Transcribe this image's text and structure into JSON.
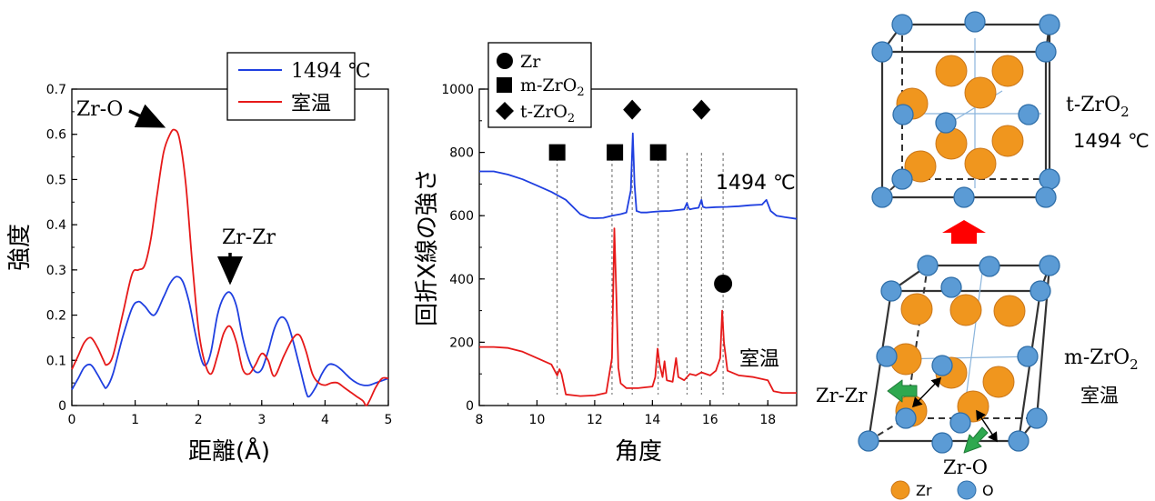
{
  "colors": {
    "hot": "#1f3fe0",
    "room": "#e61919",
    "zr_atom": "#f0961e",
    "o_atom": "#5b9bd5",
    "green_arrow": "#2ea84f",
    "red_arrow": "#ff0000",
    "ref_line": "#666666"
  },
  "chart_data": [
    {
      "type": "line",
      "xlabel": "距離(Å)",
      "ylabel": "強度",
      "xlim": [
        0,
        5
      ],
      "ylim": [
        0,
        0.7
      ],
      "xticks": [
        "0",
        "1",
        "2",
        "3",
        "4",
        "5"
      ],
      "yticks": [
        "0",
        "0.1",
        "0.2",
        "0.3",
        "0.4",
        "0.5",
        "0.6",
        "0.7"
      ],
      "legend": {
        "position": "top-right",
        "entries": [
          "1494 ℃",
          "室温"
        ]
      },
      "series": [
        {
          "name": "1494 ℃",
          "color": "hot",
          "x": [
            0,
            0.1,
            0.2,
            0.3,
            0.4,
            0.5,
            0.55,
            0.65,
            0.8,
            0.95,
            1.05,
            1.15,
            1.3,
            1.45,
            1.55,
            1.65,
            1.75,
            1.85,
            1.95,
            2.05,
            2.12,
            2.2,
            2.3,
            2.4,
            2.5,
            2.6,
            2.7,
            2.8,
            2.9,
            3.0,
            3.1,
            3.2,
            3.3,
            3.4,
            3.5,
            3.6,
            3.7,
            3.75,
            3.85,
            3.95,
            4.05,
            4.15,
            4.25,
            4.4,
            4.5,
            4.6,
            4.7,
            4.8,
            4.9,
            5.0
          ],
          "y": [
            0.035,
            0.06,
            0.085,
            0.09,
            0.07,
            0.045,
            0.04,
            0.07,
            0.15,
            0.215,
            0.23,
            0.22,
            0.2,
            0.24,
            0.27,
            0.285,
            0.275,
            0.23,
            0.16,
            0.1,
            0.09,
            0.12,
            0.2,
            0.24,
            0.25,
            0.22,
            0.15,
            0.1,
            0.075,
            0.08,
            0.12,
            0.17,
            0.195,
            0.185,
            0.14,
            0.085,
            0.03,
            0.02,
            0.04,
            0.07,
            0.09,
            0.09,
            0.08,
            0.06,
            0.05,
            0.045,
            0.045,
            0.05,
            0.055,
            0.06
          ]
        },
        {
          "name": "室温",
          "color": "room",
          "x": [
            0,
            0.1,
            0.2,
            0.3,
            0.4,
            0.5,
            0.55,
            0.65,
            0.8,
            0.95,
            1.05,
            1.15,
            1.25,
            1.35,
            1.45,
            1.55,
            1.62,
            1.7,
            1.8,
            1.9,
            2.0,
            2.1,
            2.2,
            2.3,
            2.4,
            2.5,
            2.6,
            2.7,
            2.8,
            2.9,
            3.0,
            3.1,
            3.2,
            3.35,
            3.5,
            3.6,
            3.7,
            3.8,
            3.9,
            4.0,
            4.1,
            4.2,
            4.3,
            4.4,
            4.5,
            4.6,
            4.65,
            4.7,
            4.8,
            4.9,
            5.0
          ],
          "y": [
            0.08,
            0.11,
            0.14,
            0.15,
            0.13,
            0.1,
            0.09,
            0.11,
            0.2,
            0.29,
            0.3,
            0.31,
            0.37,
            0.47,
            0.56,
            0.6,
            0.61,
            0.59,
            0.49,
            0.32,
            0.17,
            0.095,
            0.07,
            0.11,
            0.16,
            0.175,
            0.14,
            0.08,
            0.07,
            0.09,
            0.115,
            0.1,
            0.065,
            0.11,
            0.15,
            0.155,
            0.12,
            0.07,
            0.05,
            0.045,
            0.05,
            0.05,
            0.04,
            0.03,
            0.02,
            0.01,
            0.0,
            0.01,
            0.04,
            0.06,
            0.06
          ]
        }
      ],
      "annotations": [
        {
          "text": "Zr-O",
          "x": 1.6,
          "y": 0.61
        },
        {
          "text": "Zr-Zr",
          "x": 2.5,
          "y": 0.255
        }
      ]
    },
    {
      "type": "line",
      "xlabel": "角度",
      "ylabel": "回折X線の強さ",
      "xlim": [
        8,
        19
      ],
      "ylim": [
        0,
        1000
      ],
      "xticks": [
        "8",
        "10",
        "12",
        "14",
        "16",
        "18"
      ],
      "yticks": [
        "0",
        "200",
        "400",
        "600",
        "800",
        "1000"
      ],
      "legend": {
        "position": "top-left",
        "entries": [
          {
            "symbol": "circle",
            "label": "Zr"
          },
          {
            "symbol": "square",
            "label": "m-ZrO",
            "sub": "2"
          },
          {
            "symbol": "diamond",
            "label": "t-ZrO",
            "sub": "2"
          }
        ]
      },
      "series": [
        {
          "name": "1494 ℃",
          "color": "hot",
          "x": [
            8,
            8.5,
            9,
            9.5,
            10,
            10.5,
            11,
            11.5,
            11.8,
            12,
            12.3,
            12.6,
            12.9,
            13.1,
            13.25,
            13.32,
            13.38,
            13.45,
            13.6,
            13.8,
            14,
            14.3,
            14.6,
            14.9,
            15.1,
            15.2,
            15.25,
            15.3,
            15.4,
            15.6,
            15.7,
            15.75,
            15.85,
            16.2,
            16.6,
            17,
            17.4,
            17.8,
            17.95,
            18.1,
            18.3,
            18.6,
            19
          ],
          "y": [
            740,
            740,
            730,
            715,
            695,
            675,
            650,
            605,
            593,
            592,
            593,
            600,
            605,
            610,
            680,
            860,
            700,
            615,
            610,
            610,
            612,
            614,
            615,
            618,
            620,
            640,
            625,
            620,
            622,
            625,
            650,
            628,
            625,
            627,
            628,
            630,
            633,
            635,
            650,
            615,
            600,
            595,
            590
          ]
        },
        {
          "name": "室温",
          "color": "room",
          "x": [
            8,
            8.5,
            9,
            9.5,
            10,
            10.5,
            10.7,
            10.78,
            10.85,
            11,
            11.5,
            12,
            12.4,
            12.6,
            12.68,
            12.75,
            12.82,
            12.9,
            13.1,
            13.5,
            14,
            14.1,
            14.18,
            14.25,
            14.35,
            14.42,
            14.5,
            14.7,
            14.82,
            14.9,
            15.1,
            15.3,
            15.5,
            15.7,
            16,
            16.2,
            16.35,
            16.42,
            16.48,
            16.6,
            17,
            17.5,
            18,
            18.2,
            18.5,
            19
          ],
          "y": [
            185,
            185,
            182,
            170,
            150,
            130,
            95,
            115,
            100,
            35,
            30,
            32,
            40,
            150,
            560,
            350,
            120,
            70,
            55,
            55,
            60,
            90,
            180,
            130,
            90,
            140,
            80,
            75,
            150,
            90,
            80,
            100,
            95,
            105,
            95,
            110,
            150,
            300,
            200,
            110,
            95,
            90,
            80,
            45,
            40,
            40
          ]
        }
      ],
      "series_labels": [
        {
          "text": "1494 ℃",
          "x": 17.0,
          "y": 700
        },
        {
          "text": "室温",
          "x": 17.5,
          "y": 155
        }
      ],
      "markers": [
        {
          "symbol": "square",
          "x": 10.7,
          "y": 800
        },
        {
          "symbol": "square",
          "x": 12.7,
          "y": 800
        },
        {
          "symbol": "square",
          "x": 14.2,
          "y": 800
        },
        {
          "symbol": "diamond",
          "x": 13.3,
          "y": 935
        },
        {
          "symbol": "diamond",
          "x": 15.7,
          "y": 935
        },
        {
          "symbol": "circle",
          "x": 16.45,
          "y": 385
        }
      ],
      "reference_lines_x": [
        10.7,
        12.6,
        13.3,
        14.2,
        15.2,
        15.7,
        16.45
      ]
    }
  ],
  "structures": {
    "top": {
      "name": "t-ZrO",
      "sub": "2",
      "temp": "1494 ℃"
    },
    "bottom": {
      "name": "m-ZrO",
      "sub": "2",
      "temp": "室温"
    },
    "bond_labels": {
      "zrzr": "Zr-Zr",
      "zro": "Zr-O"
    },
    "legend": {
      "zr": "Zr",
      "o": "O"
    }
  }
}
